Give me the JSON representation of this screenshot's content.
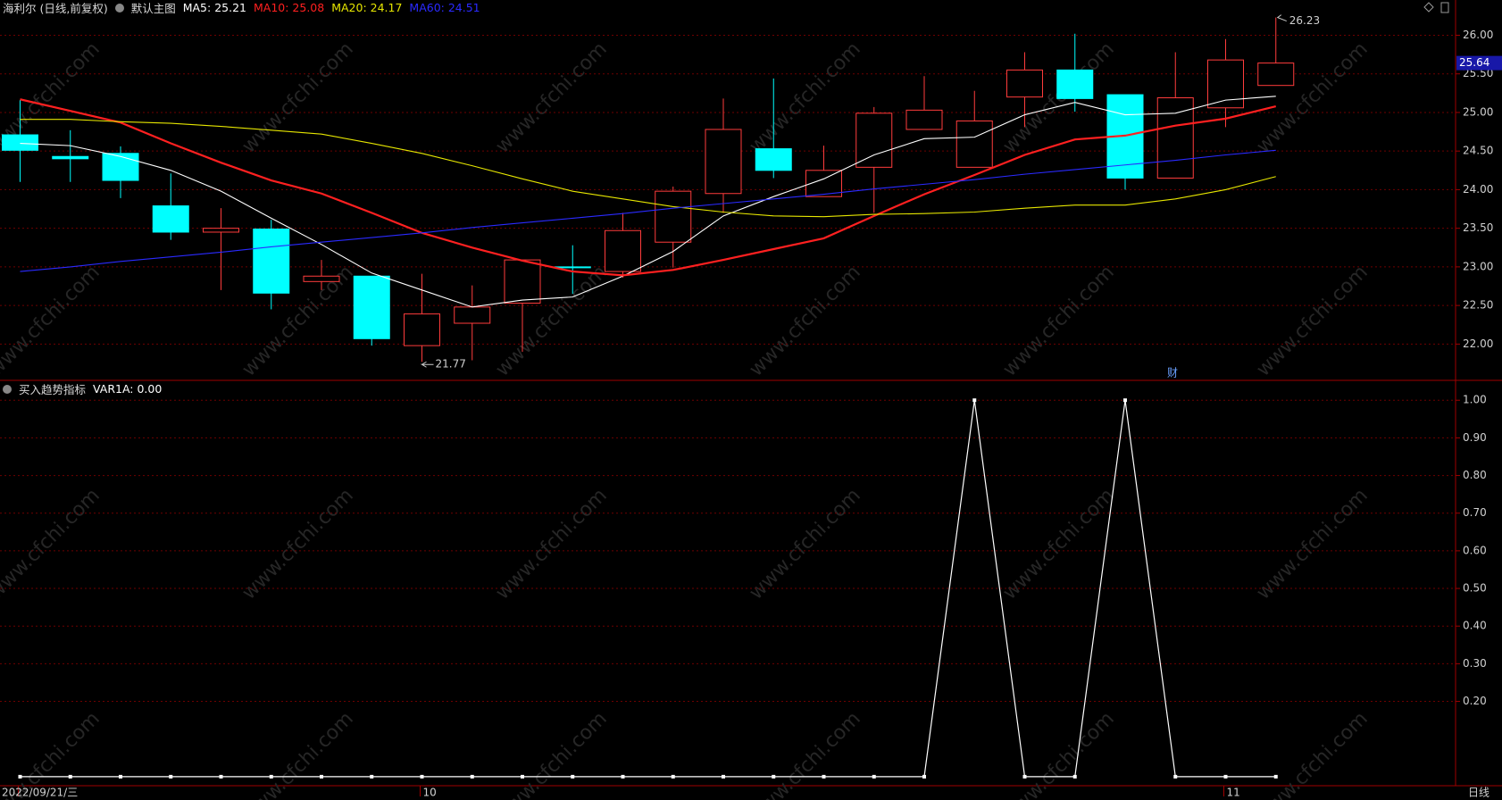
{
  "chart_data": [
    {
      "type": "candlestick",
      "title": "海利尔 (日线,前复权)",
      "subtitle": "默认主图",
      "categories": [
        "2022/09/21/三",
        null,
        null,
        null,
        null,
        null,
        null,
        null,
        "10",
        null,
        null,
        null,
        null,
        null,
        null,
        null,
        null,
        null,
        null,
        null,
        null,
        null,
        null,
        null,
        "11",
        null
      ],
      "open": [
        24.71,
        24.43,
        24.47,
        23.79,
        23.45,
        23.49,
        22.81,
        22.88,
        21.98,
        22.27,
        22.53,
        23.0,
        22.94,
        23.32,
        23.95,
        24.53,
        23.91,
        24.29,
        24.78,
        24.29,
        25.2,
        25.55,
        25.23,
        24.15,
        25.06,
        25.35
      ],
      "high": [
        25.16,
        24.77,
        24.56,
        24.21,
        23.76,
        23.61,
        23.09,
        22.88,
        22.91,
        22.76,
        23.09,
        23.28,
        23.7,
        24.04,
        25.18,
        25.44,
        24.57,
        25.07,
        25.47,
        25.28,
        25.78,
        26.02,
        25.23,
        25.78,
        25.95,
        26.23
      ],
      "low": [
        24.1,
        24.1,
        23.89,
        23.35,
        22.7,
        22.45,
        22.7,
        21.98,
        21.77,
        21.79,
        21.9,
        22.65,
        22.86,
        22.99,
        23.7,
        24.15,
        23.91,
        23.7,
        24.78,
        24.29,
        24.81,
        25.01,
        24.0,
        24.15,
        24.81,
        25.35
      ],
      "close": [
        24.51,
        24.4,
        24.12,
        23.45,
        23.5,
        22.66,
        22.88,
        22.07,
        22.39,
        22.48,
        23.09,
        22.99,
        23.47,
        23.98,
        24.78,
        24.25,
        24.25,
        24.99,
        25.03,
        24.89,
        25.55,
        25.18,
        24.15,
        25.19,
        25.68,
        25.64
      ],
      "up_color": "#ff3c3c",
      "down_color": "#00ffff",
      "series": [
        {
          "name": "MA5: 25.21",
          "color": "#ffffff",
          "values": [
            24.6,
            24.57,
            24.43,
            24.25,
            23.98,
            23.63,
            23.29,
            22.92,
            22.7,
            22.48,
            22.57,
            22.61,
            22.88,
            23.2,
            23.66,
            23.91,
            24.14,
            24.45,
            24.66,
            24.68,
            24.97,
            25.13,
            24.97,
            24.99,
            25.16,
            25.21
          ]
        },
        {
          "name": "MA10: 25.08",
          "color": "#ff2020",
          "values": [
            25.17,
            25.02,
            24.87,
            24.6,
            24.35,
            24.12,
            23.95,
            23.7,
            23.44,
            23.25,
            23.08,
            22.94,
            22.89,
            22.96,
            23.09,
            23.23,
            23.37,
            23.66,
            23.94,
            24.19,
            24.45,
            24.65,
            24.7,
            24.83,
            24.92,
            25.08
          ]
        },
        {
          "name": "MA20: 24.17",
          "color": "#e6e600",
          "values": [
            24.91,
            24.91,
            24.88,
            24.86,
            24.82,
            24.77,
            24.72,
            24.6,
            24.47,
            24.31,
            24.14,
            23.98,
            23.88,
            23.78,
            23.71,
            23.66,
            23.65,
            23.68,
            23.69,
            23.71,
            23.76,
            23.8,
            23.8,
            23.88,
            24.0,
            24.17
          ]
        },
        {
          "name": "MA60: 24.51",
          "color": "#2a2aff",
          "values": [
            22.94,
            23.0,
            23.07,
            23.13,
            23.19,
            23.26,
            23.32,
            23.38,
            23.44,
            23.51,
            23.57,
            23.63,
            23.69,
            23.76,
            23.82,
            23.88,
            23.94,
            24.01,
            24.07,
            24.13,
            24.2,
            24.26,
            24.32,
            24.38,
            24.45,
            24.51
          ]
        }
      ],
      "ylim": [
        21.53,
        26.26
      ],
      "yticks": [
        {
          "value": 22,
          "label": "22.00"
        },
        {
          "value": 22.5,
          "label": "22.50"
        },
        {
          "value": 23,
          "label": "23.00"
        },
        {
          "value": 23.5,
          "label": "23.50"
        },
        {
          "value": 24,
          "label": "24.00"
        },
        {
          "value": 24.5,
          "label": "24.50"
        },
        {
          "value": 25,
          "label": "25.00"
        },
        {
          "value": 25.5,
          "label": "25.50"
        },
        {
          "value": 26,
          "label": "26.00"
        }
      ],
      "grid": true,
      "annotations": [
        "财"
      ],
      "watermark": "www.cfchi.com"
    },
    {
      "type": "line",
      "title": "买入趋势指标",
      "series": [
        {
          "name": "VAR1A: 0.00",
          "color": "#ffffff",
          "values": [
            0,
            0,
            0,
            0,
            0,
            0,
            0,
            0,
            0,
            0,
            0,
            0,
            0,
            0,
            0,
            0,
            0,
            0,
            0,
            1,
            0,
            0,
            1,
            0,
            0,
            0
          ]
        }
      ],
      "ylim": [
        -0.024,
        1.048
      ],
      "yticks": [
        {
          "value": 0.2,
          "label": "0.20"
        },
        {
          "value": 0.3,
          "label": "0.30"
        },
        {
          "value": 0.4,
          "label": "0.40"
        },
        {
          "value": 0.5,
          "label": "0.50"
        },
        {
          "value": 0.6,
          "label": "0.60"
        },
        {
          "value": 0.7,
          "label": "0.70"
        },
        {
          "value": 0.8,
          "label": "0.80"
        },
        {
          "value": 0.9,
          "label": "0.90"
        },
        {
          "value": 1,
          "label": "1.00"
        }
      ],
      "grid": true,
      "xlabel": "日线"
    }
  ]
}
